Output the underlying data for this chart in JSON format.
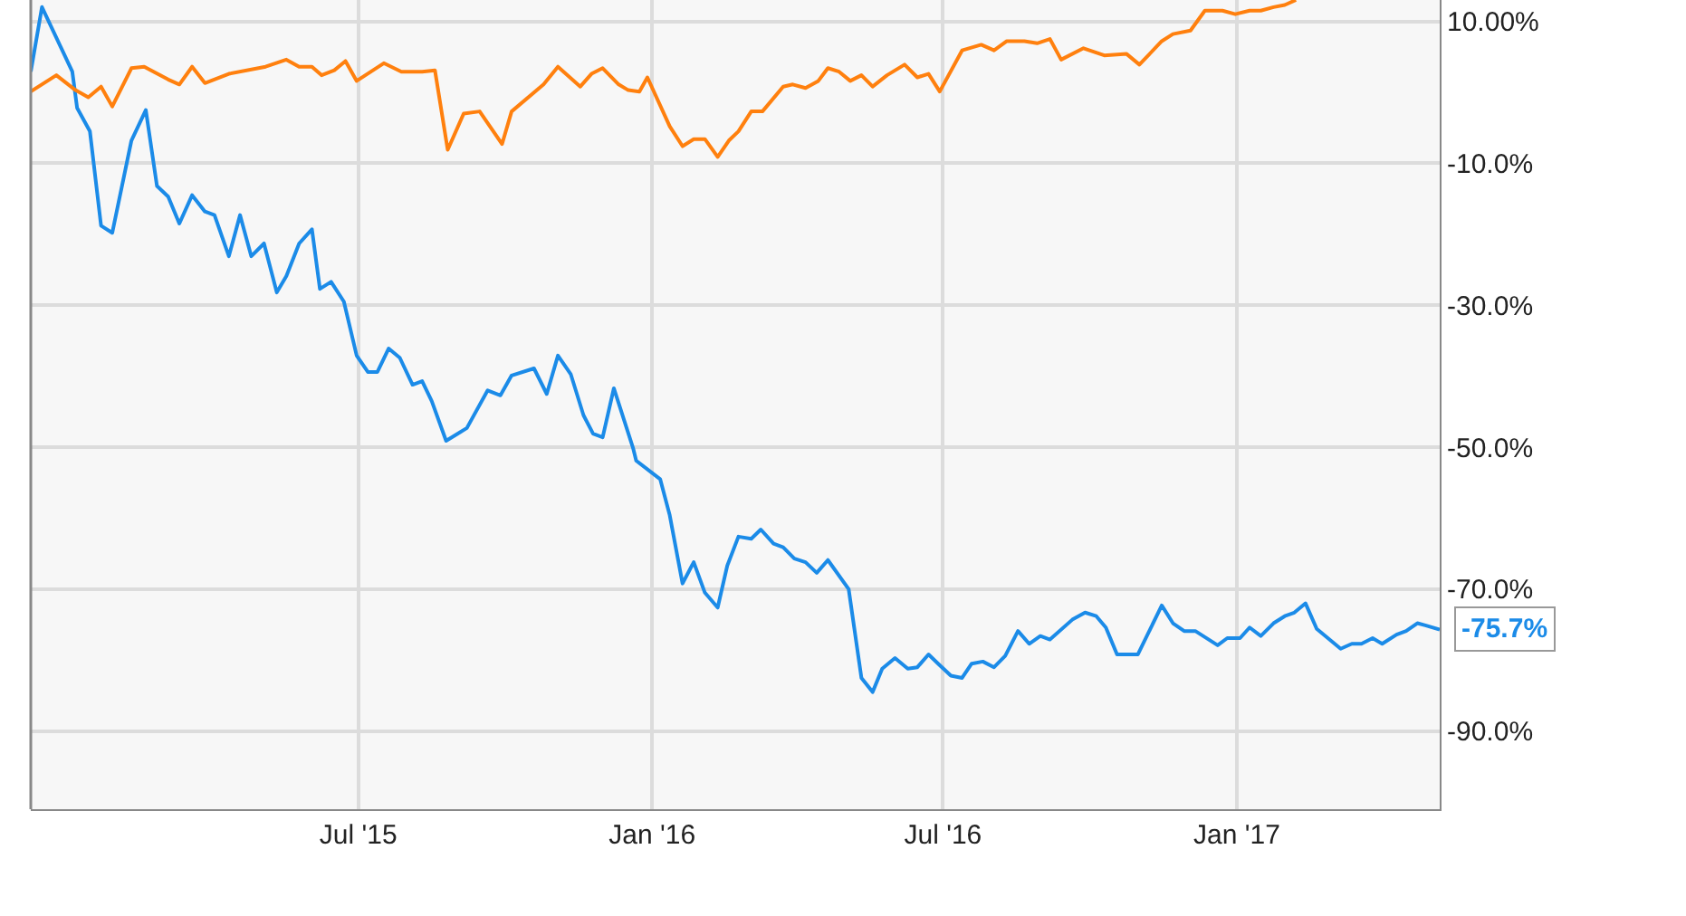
{
  "chart_data": {
    "type": "line",
    "xlim": [
      "2014-12-08",
      "2017-05-08"
    ],
    "xticks": [
      {
        "value": "2015-07-01",
        "label": "Jul '15"
      },
      {
        "value": "2016-01-01",
        "label": "Jan '16"
      },
      {
        "value": "2016-07-01",
        "label": "Jul '16"
      },
      {
        "value": "2017-01-01",
        "label": "Jan '17"
      }
    ],
    "ylim": [
      -101,
      13
    ],
    "yticks": [
      {
        "value": 10,
        "label": "10.00%"
      },
      {
        "value": -10,
        "label": "-10.0%"
      },
      {
        "value": -30,
        "label": "-30.0%"
      },
      {
        "value": -50,
        "label": "-50.0%"
      },
      {
        "value": -70,
        "label": "-70.0%"
      },
      {
        "value": -90,
        "label": "-90.0%"
      }
    ],
    "grid": true,
    "marker": "none",
    "line_style": "solid",
    "annotations": [
      {
        "text": "-75.7%",
        "x": "2017-05-08",
        "y": -75.7
      }
    ],
    "series": [
      {
        "color": "#1b8be8",
        "x": [
          "2014-12-08",
          "2014-12-15",
          "2015-01-03",
          "2015-01-06",
          "2015-01-14",
          "2015-01-21",
          "2015-01-28",
          "2015-02-09",
          "2015-02-18",
          "2015-02-25",
          "2015-03-04",
          "2015-03-11",
          "2015-03-19",
          "2015-03-27",
          "2015-04-02",
          "2015-04-11",
          "2015-04-18",
          "2015-04-25",
          "2015-05-03",
          "2015-05-11",
          "2015-05-17",
          "2015-05-25",
          "2015-06-02",
          "2015-06-07",
          "2015-06-14",
          "2015-06-22",
          "2015-06-30",
          "2015-07-07",
          "2015-07-13",
          "2015-07-20",
          "2015-07-27",
          "2015-08-04",
          "2015-08-10",
          "2015-08-16",
          "2015-08-25",
          "2015-09-07",
          "2015-09-20",
          "2015-09-28",
          "2015-10-05",
          "2015-10-19",
          "2015-10-27",
          "2015-11-03",
          "2015-11-11",
          "2015-11-19",
          "2015-11-25",
          "2015-12-01",
          "2015-12-08",
          "2015-12-20",
          "2015-12-22",
          "2016-01-06",
          "2016-01-12",
          "2016-01-20",
          "2016-01-27",
          "2016-02-03",
          "2016-02-11",
          "2016-02-17",
          "2016-02-24",
          "2016-03-03",
          "2016-03-09",
          "2016-03-17",
          "2016-03-23",
          "2016-03-30",
          "2016-04-06",
          "2016-04-13",
          "2016-04-20",
          "2016-05-03",
          "2016-05-11",
          "2016-05-18",
          "2016-05-24",
          "2016-06-01",
          "2016-06-09",
          "2016-06-15",
          "2016-06-22",
          "2016-06-28",
          "2016-07-06",
          "2016-07-13",
          "2016-07-19",
          "2016-07-26",
          "2016-08-02",
          "2016-08-09",
          "2016-08-17",
          "2016-08-24",
          "2016-08-31",
          "2016-09-06",
          "2016-09-20",
          "2016-09-28",
          "2016-10-05",
          "2016-10-11",
          "2016-10-18",
          "2016-10-31",
          "2016-11-15",
          "2016-11-22",
          "2016-11-29",
          "2016-12-06",
          "2016-12-20",
          "2016-12-26",
          "2017-01-03",
          "2017-01-09",
          "2017-01-16",
          "2017-01-24",
          "2017-01-31",
          "2017-02-06",
          "2017-02-13",
          "2017-02-20",
          "2017-03-07",
          "2017-03-14",
          "2017-03-20",
          "2017-03-27",
          "2017-04-02",
          "2017-04-11",
          "2017-04-17",
          "2017-04-24",
          "2017-04-29",
          "2017-05-08"
        ],
        "values": [
          2.9,
          12,
          2.9,
          -2.2,
          -5.5,
          -18.8,
          -19.8,
          -6.8,
          -2.5,
          -13.2,
          -14.7,
          -18.5,
          -14.5,
          -16.8,
          -17.3,
          -23.1,
          -17.3,
          -23.1,
          -21.3,
          -28.2,
          -25.9,
          -21.3,
          -19.3,
          -27.7,
          -26.7,
          -29.5,
          -37.1,
          -39.4,
          -39.4,
          -36.1,
          -37.4,
          -41.2,
          -40.7,
          -43.5,
          -49.1,
          -47.3,
          -42.0,
          -42.7,
          -39.9,
          -38.9,
          -42.5,
          -37.1,
          -39.7,
          -45.5,
          -48.1,
          -48.6,
          -41.7,
          -50.1,
          -51.9,
          -54.5,
          -59.6,
          -69.2,
          -66.2,
          -70.5,
          -72.6,
          -66.7,
          -62.6,
          -62.9,
          -61.6,
          -63.6,
          -64.1,
          -65.7,
          -66.2,
          -67.7,
          -65.9,
          -70.0,
          -82.5,
          -84.5,
          -81.2,
          -79.7,
          -81.2,
          -81.0,
          -79.2,
          -80.5,
          -82.2,
          -82.5,
          -80.5,
          -80.2,
          -81.0,
          -79.4,
          -75.9,
          -77.7,
          -76.6,
          -77.1,
          -74.3,
          -73.3,
          -73.8,
          -75.4,
          -79.2,
          -79.2,
          -72.3,
          -74.8,
          -75.9,
          -75.9,
          -77.9,
          -76.9,
          -76.9,
          -75.4,
          -76.6,
          -74.8,
          -73.8,
          -73.3,
          -72.0,
          -75.6,
          -78.4,
          -77.7,
          -77.7,
          -76.9,
          -77.7,
          -76.4,
          -75.9,
          -74.8,
          -75.1,
          -75.7
        ]
      },
      {
        "color": "#ff800e",
        "x": [
          "2014-12-08",
          "2014-12-24",
          "2015-01-05",
          "2015-01-13",
          "2015-01-21",
          "2015-01-28",
          "2015-02-09",
          "2015-02-17",
          "2015-03-04",
          "2015-03-11",
          "2015-03-19",
          "2015-03-27",
          "2015-04-11",
          "2015-05-04",
          "2015-05-17",
          "2015-05-25",
          "2015-06-02",
          "2015-06-08",
          "2015-06-16",
          "2015-06-23",
          "2015-06-30",
          "2015-07-17",
          "2015-07-28",
          "2015-08-10",
          "2015-08-18",
          "2015-08-26",
          "2015-09-05",
          "2015-09-15",
          "2015-09-29",
          "2015-10-05",
          "2015-10-25",
          "2015-11-03",
          "2015-11-17",
          "2015-11-24",
          "2015-12-01",
          "2015-12-11",
          "2015-12-17",
          "2015-12-24",
          "2015-12-29",
          "2016-01-12",
          "2016-01-20",
          "2016-01-27",
          "2016-02-03",
          "2016-02-11",
          "2016-02-18",
          "2016-02-24",
          "2016-03-03",
          "2016-03-10",
          "2016-03-23",
          "2016-03-29",
          "2016-04-06",
          "2016-04-14",
          "2016-04-20",
          "2016-04-27",
          "2016-05-04",
          "2016-05-11",
          "2016-05-18",
          "2016-05-27",
          "2016-06-07",
          "2016-06-15",
          "2016-06-22",
          "2016-06-29",
          "2016-07-13",
          "2016-07-25",
          "2016-08-02",
          "2016-08-10",
          "2016-08-21",
          "2016-08-29",
          "2016-09-06",
          "2016-09-13",
          "2016-09-27",
          "2016-10-10",
          "2016-10-24",
          "2016-11-01",
          "2016-11-15",
          "2016-11-22",
          "2016-12-03",
          "2016-12-12",
          "2016-12-23",
          "2016-12-31",
          "2017-01-09",
          "2017-01-16",
          "2017-01-24",
          "2017-01-31",
          "2017-02-07"
        ],
        "values": [
          0.1,
          2.4,
          0.3,
          -0.7,
          0.8,
          -2.0,
          3.4,
          3.6,
          1.8,
          1.1,
          3.6,
          1.3,
          2.6,
          3.6,
          4.6,
          3.6,
          3.6,
          2.4,
          3.1,
          4.4,
          1.6,
          4.1,
          2.9,
          2.9,
          3.1,
          -8.1,
          -3.0,
          -2.7,
          -7.3,
          -2.7,
          1.1,
          3.6,
          0.8,
          2.6,
          3.4,
          1.1,
          0.3,
          0.1,
          2.1,
          -4.8,
          -7.6,
          -6.6,
          -6.6,
          -9.1,
          -6.8,
          -5.5,
          -2.7,
          -2.7,
          0.8,
          1.1,
          0.6,
          1.6,
          3.4,
          2.9,
          1.6,
          2.4,
          0.8,
          2.4,
          3.9,
          2.1,
          2.6,
          0.1,
          5.9,
          6.7,
          5.9,
          7.2,
          7.2,
          6.9,
          7.5,
          4.6,
          6.2,
          5.2,
          5.4,
          3.9,
          7.2,
          8.2,
          8.7,
          11.5,
          11.5,
          11.0,
          11.5,
          11.5,
          12.0,
          12.3,
          13
        ]
      }
    ]
  }
}
